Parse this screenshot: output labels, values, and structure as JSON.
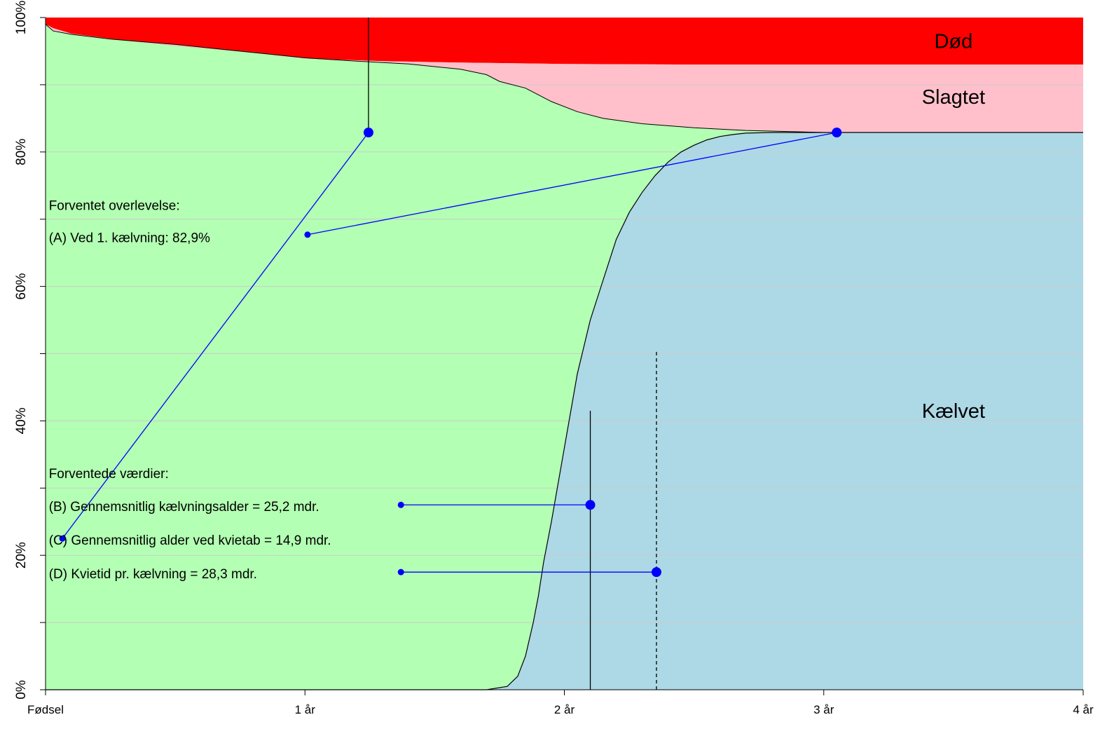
{
  "chart_data": {
    "type": "area",
    "title": "",
    "xlabel": "",
    "ylabel": "",
    "xlim": [
      0,
      4
    ],
    "ylim": [
      0,
      100
    ],
    "x_ticks": [
      {
        "value": 0,
        "label": "Fødsel"
      },
      {
        "value": 1,
        "label": "1 år"
      },
      {
        "value": 2,
        "label": "2 år"
      },
      {
        "value": 3,
        "label": "3 år"
      },
      {
        "value": 4,
        "label": "4 år"
      }
    ],
    "y_ticks": [
      {
        "value": 0,
        "label": "0%"
      },
      {
        "value": 20,
        "label": "20%"
      },
      {
        "value": 40,
        "label": "40%"
      },
      {
        "value": 60,
        "label": "60%"
      },
      {
        "value": 80,
        "label": "80%"
      },
      {
        "value": 100,
        "label": "100%"
      }
    ],
    "grid_y": [
      10,
      20,
      30,
      40,
      50,
      60,
      70,
      80,
      90
    ],
    "series": [
      {
        "name": "Kælvet",
        "color": "#add8e6",
        "x": [
          0,
          1.7,
          1.78,
          1.82,
          1.85,
          1.88,
          1.9,
          1.92,
          1.95,
          2.0,
          2.05,
          2.1,
          2.15,
          2.2,
          2.25,
          2.3,
          2.35,
          2.4,
          2.45,
          2.5,
          2.55,
          2.6,
          2.65,
          2.7,
          2.8,
          2.9,
          3.0,
          3.05,
          4.0
        ],
        "y": [
          0,
          0,
          0.5,
          2,
          5,
          10,
          14,
          19,
          25,
          36,
          47,
          55,
          61,
          67,
          71,
          74,
          76.5,
          78.5,
          80,
          81,
          81.8,
          82.3,
          82.6,
          82.8,
          82.9,
          82.9,
          82.9,
          82.9,
          82.9
        ]
      },
      {
        "name": "Slagtet",
        "color": "#ffc0cb",
        "x": [
          0,
          0.03,
          0.1,
          0.25,
          0.5,
          0.75,
          1.0,
          1.2,
          1.4,
          1.6,
          1.7,
          1.75,
          1.85,
          1.95,
          2.05,
          2.15,
          2.3,
          2.5,
          2.7,
          3.0,
          4.0
        ],
        "y": [
          99,
          98,
          97.5,
          96.8,
          96.0,
          95.0,
          94.0,
          93.5,
          93.1,
          92.3,
          91.5,
          90.5,
          89.5,
          87.5,
          86.0,
          85.0,
          84.2,
          83.6,
          83.2,
          82.9,
          82.9
        ]
      },
      {
        "name": "Død",
        "color": "#ff0000",
        "x": [
          0,
          0.03,
          0.1,
          0.3,
          0.5,
          0.8,
          1.0,
          1.3,
          1.6,
          2.0,
          2.5,
          3.0,
          4.0
        ],
        "y": [
          99,
          98.4,
          97.6,
          96.6,
          95.8,
          94.8,
          93.9,
          93.5,
          93.3,
          93.1,
          93.0,
          93.0,
          93.0
        ]
      }
    ],
    "region_labels": [
      {
        "text": "Død",
        "x": 3.5,
        "y": 96.5
      },
      {
        "text": "Slagtet",
        "x": 3.5,
        "y": 88.2
      },
      {
        "text": "Kælvet",
        "x": 3.5,
        "y": 41.5
      }
    ],
    "annotations": {
      "heading_survival": {
        "text": "Forventet overlevelse:",
        "x": 0.01,
        "y": 72.1
      },
      "A": {
        "text": "(A) Ved 1. kælvning: 82,9%",
        "x": 0.01,
        "y": 67.3
      },
      "heading_values": {
        "text": "Forventede værdier:",
        "x": 0.01,
        "y": 32.2
      },
      "B": {
        "text": "(B) Gennemsnitlig kælvningsalder = 25,2 mdr.",
        "x": 0.01,
        "y": 27.3
      },
      "C": {
        "text": "(C) Gennemsnitlig alder ved kvietab = 14,9 mdr.",
        "x": 0.01,
        "y": 22.3
      },
      "D": {
        "text": "(D) Kvietid pr. kælvning = 28,3 mdr.",
        "x": 0.01,
        "y": 17.3
      }
    },
    "connectors": [
      {
        "from": [
          1.01,
          67.7
        ],
        "to": [
          3.05,
          82.9
        ]
      },
      {
        "from": [
          0.065,
          22.5
        ],
        "to": [
          1.245,
          82.9
        ]
      },
      {
        "from": [
          1.37,
          27.5
        ],
        "to": [
          2.1,
          27.5
        ]
      },
      {
        "from": [
          1.37,
          17.5
        ],
        "to": [
          2.355,
          17.5
        ]
      }
    ],
    "vertical_markers": [
      {
        "x": 1.245,
        "y_from": 82.9,
        "y_to": 100,
        "style": "solid"
      },
      {
        "x": 2.1,
        "y_from": 0,
        "y_to": 41.5,
        "style": "solid"
      },
      {
        "x": 2.355,
        "y_from": 0,
        "y_to": 50.3,
        "style": "dashed"
      }
    ],
    "colors": {
      "alive": "#b3ffb3",
      "connector": "#0000ff",
      "outline": "#000000"
    }
  }
}
